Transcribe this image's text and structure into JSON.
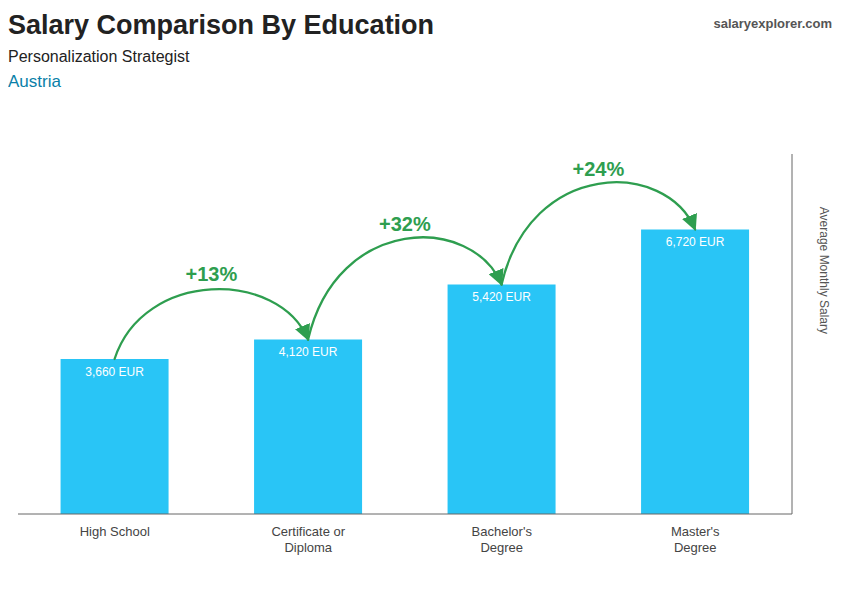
{
  "chart_data": {
    "type": "bar",
    "title": "Salary Comparison By Education",
    "subtitle": "Personalization Strategist",
    "categories": [
      "High School",
      "Certificate or\nDiploma",
      "Bachelor's\nDegree",
      "Master's\nDegree"
    ],
    "values": [
      3660,
      4120,
      5420,
      6720
    ],
    "value_labels": [
      "3,660 EUR",
      "4,120 EUR",
      "5,420 EUR",
      "6,720 EUR"
    ],
    "data_labels": true,
    "color": "#29C5F6",
    "ylabel": "Average Monthly Salary",
    "ylim": [
      0,
      8500
    ],
    "yticks": [],
    "grid": false,
    "tick_labels": "x",
    "annotations": [
      {
        "text": "+13%",
        "from": "High School",
        "to": "Certificate or\nDiploma"
      },
      {
        "text": "+32%",
        "from": "Certificate or\nDiploma",
        "to": "Bachelor's\nDegree"
      },
      {
        "text": "+24%",
        "from": "Bachelor's\nDegree",
        "to": "Master's\nDegree"
      },
      {
        "text": "Austria"
      },
      {
        "text": "salaryexplorer.com"
      }
    ]
  }
}
